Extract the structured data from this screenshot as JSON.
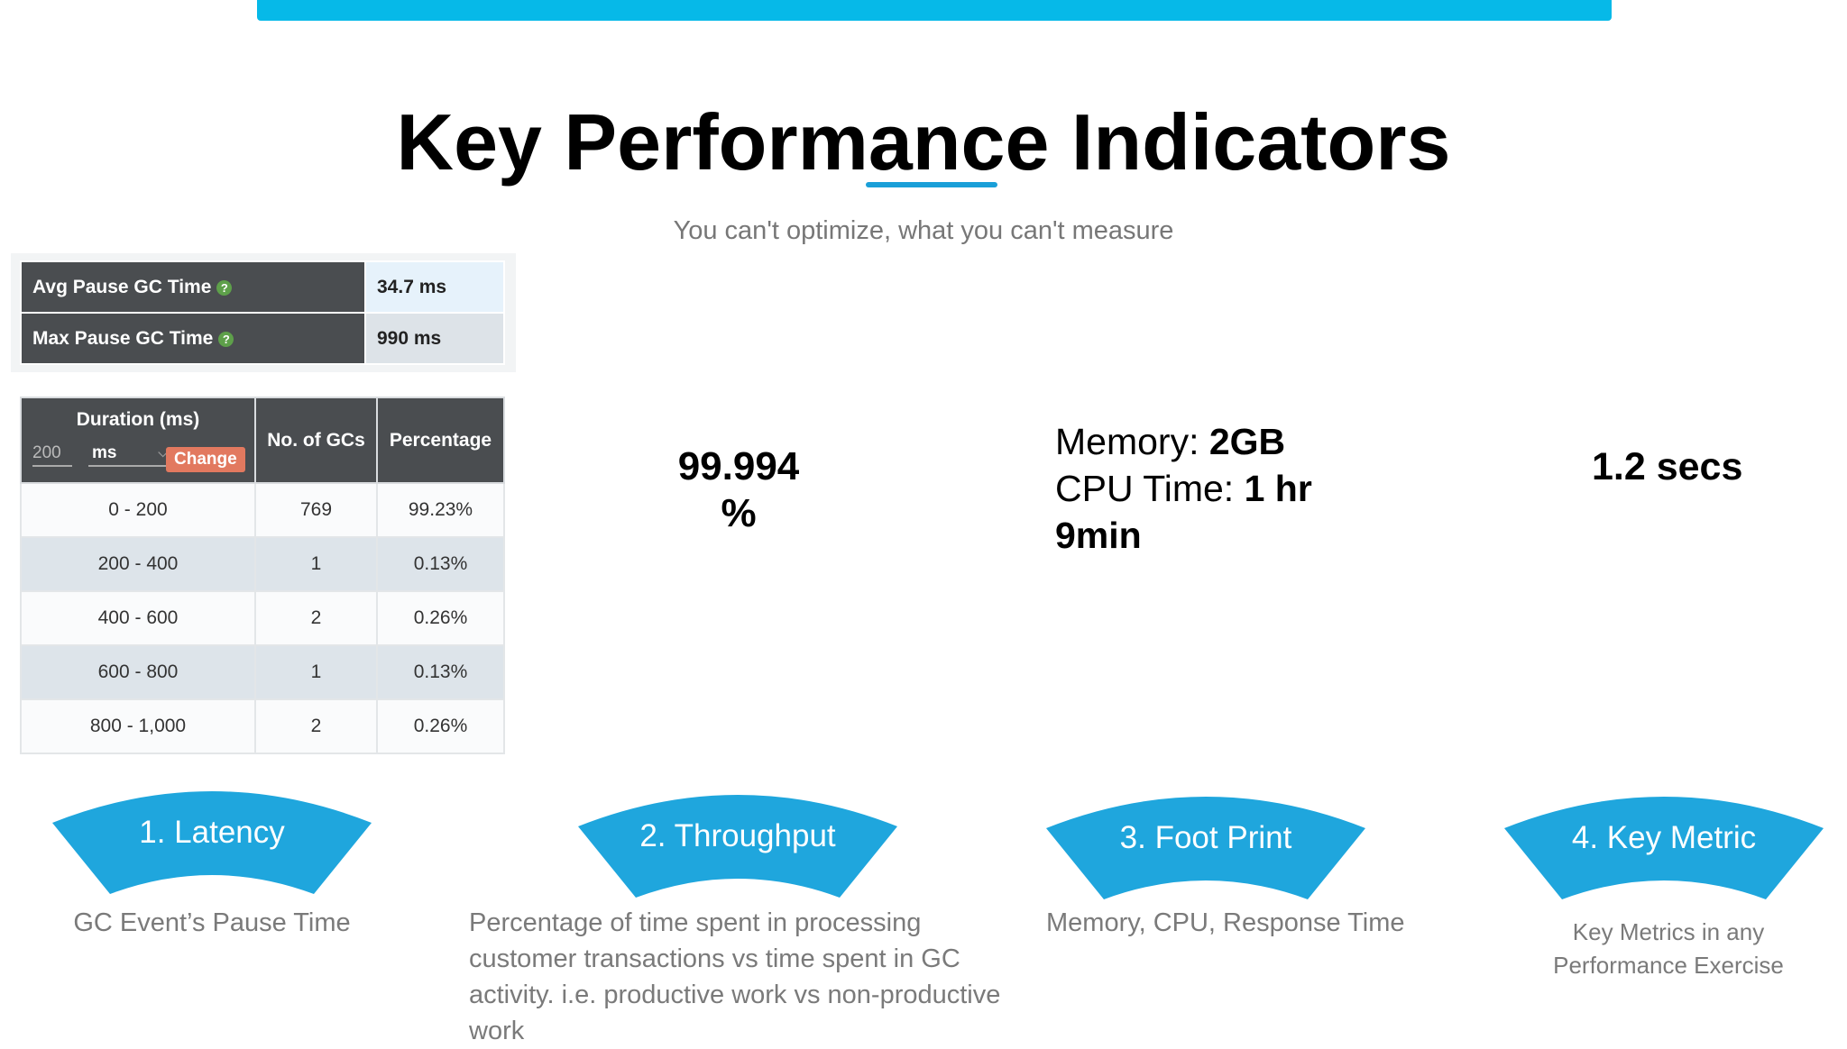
{
  "title": "Key Performance Indicators",
  "subtitle": "You can't optimize, what you can't measure",
  "colors": {
    "accent": "#06b9e8",
    "banner": "#1fa6dd",
    "change_button": "#e2795f",
    "help_icon": "#5ea04a"
  },
  "pause_table": {
    "rows": [
      {
        "label": "Avg Pause GC Time",
        "value": "34.7 ms"
      },
      {
        "label": "Max Pause GC Time",
        "value": "990 ms"
      }
    ],
    "help_icon": "question-icon"
  },
  "duration_table": {
    "headers": {
      "duration": "Duration (ms)",
      "count": "No. of GCs",
      "percentage": "Percentage"
    },
    "input_placeholder": "200",
    "unit_select": "ms",
    "change_label": "Change",
    "rows": [
      {
        "range": "0 - 200",
        "count": "769",
        "pct": "99.23%"
      },
      {
        "range": "200 - 400",
        "count": "1",
        "pct": "0.13%"
      },
      {
        "range": "400 - 600",
        "count": "2",
        "pct": "0.26%"
      },
      {
        "range": "600 - 800",
        "count": "1",
        "pct": "0.13%"
      },
      {
        "range": "800 - 1,000",
        "count": "2",
        "pct": "0.26%"
      }
    ]
  },
  "metrics": {
    "throughput_line1": "99.994",
    "throughput_line2": "%",
    "memory_label": "Memory: ",
    "memory_value": "2GB",
    "cpu_label": "CPU Time: ",
    "cpu_value": "1 hr",
    "cpu_value2": "9min",
    "key_value": "1.2 secs"
  },
  "kpis": [
    {
      "label": "1. Latency",
      "desc": "GC Event’s Pause Time"
    },
    {
      "label": "2. Throughput",
      "desc": "Percentage of time spent in processing customer transactions vs time spent in GC activity. i.e. productive work vs  non-productive work"
    },
    {
      "label": "3. Foot Print",
      "desc": "Memory, CPU, Response Time"
    },
    {
      "label": "4. Key Metric",
      "desc": "Key Metrics in any Performance Exercise"
    }
  ]
}
